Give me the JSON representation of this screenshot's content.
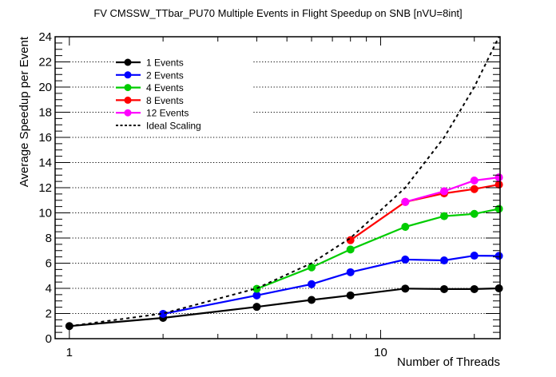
{
  "chart_data": {
    "type": "line",
    "title": "FV CMSSW_TTbar_PU70 Multiple Events in Flight Speedup on SNB [nVU=8int]",
    "xlabel": "Number of Threads",
    "ylabel": "Average Speedup per Event",
    "xscale": "log",
    "xlim": [
      0.9,
      24.2
    ],
    "ylim": [
      0,
      24
    ],
    "xticks": [
      1,
      10
    ],
    "xtick_labels": [
      "1",
      "10"
    ],
    "yticks": [
      0,
      2,
      4,
      6,
      8,
      10,
      12,
      14,
      16,
      18,
      20,
      22,
      24
    ],
    "ytick_labels": [
      "0",
      "2",
      "4",
      "6",
      "8",
      "10",
      "12",
      "14",
      "16",
      "18",
      "20",
      "22",
      "24"
    ],
    "grid": "horizontal dotted",
    "legend_position": "top-left",
    "series": [
      {
        "name": "1 Events",
        "color": "#000000",
        "style": "solid",
        "marker": true,
        "x": [
          1,
          2,
          4,
          6,
          8,
          12,
          16,
          20,
          24
        ],
        "y": [
          1.0,
          1.65,
          2.53,
          3.08,
          3.44,
          3.98,
          3.94,
          3.94,
          4.0
        ]
      },
      {
        "name": "2 Events",
        "color": "#0000ff",
        "style": "solid",
        "marker": true,
        "x": [
          2,
          4,
          6,
          8,
          12,
          16,
          20,
          24
        ],
        "y": [
          1.97,
          3.44,
          4.33,
          5.28,
          6.29,
          6.22,
          6.6,
          6.58
        ]
      },
      {
        "name": "4 Events",
        "color": "#00cc00",
        "style": "solid",
        "marker": true,
        "x": [
          4,
          6,
          8,
          12,
          16,
          20,
          24
        ],
        "y": [
          3.96,
          5.67,
          7.09,
          8.89,
          9.74,
          9.92,
          10.32
        ]
      },
      {
        "name": "8 Events",
        "color": "#ff0000",
        "style": "solid",
        "marker": true,
        "x": [
          8,
          12,
          16,
          20,
          24
        ],
        "y": [
          7.83,
          10.87,
          11.55,
          11.89,
          12.25
        ]
      },
      {
        "name": "12 Events",
        "color": "#ff00ff",
        "style": "solid",
        "marker": true,
        "x": [
          12,
          16,
          20,
          24
        ],
        "y": [
          10.87,
          11.72,
          12.57,
          12.82
        ]
      },
      {
        "name": "Ideal Scaling",
        "color": "#000000",
        "style": "dashed",
        "marker": false,
        "x": [
          1,
          2,
          4,
          6,
          8,
          12,
          16,
          20,
          24
        ],
        "y": [
          1,
          2,
          4,
          6,
          8,
          12,
          16,
          20,
          24
        ]
      }
    ]
  }
}
